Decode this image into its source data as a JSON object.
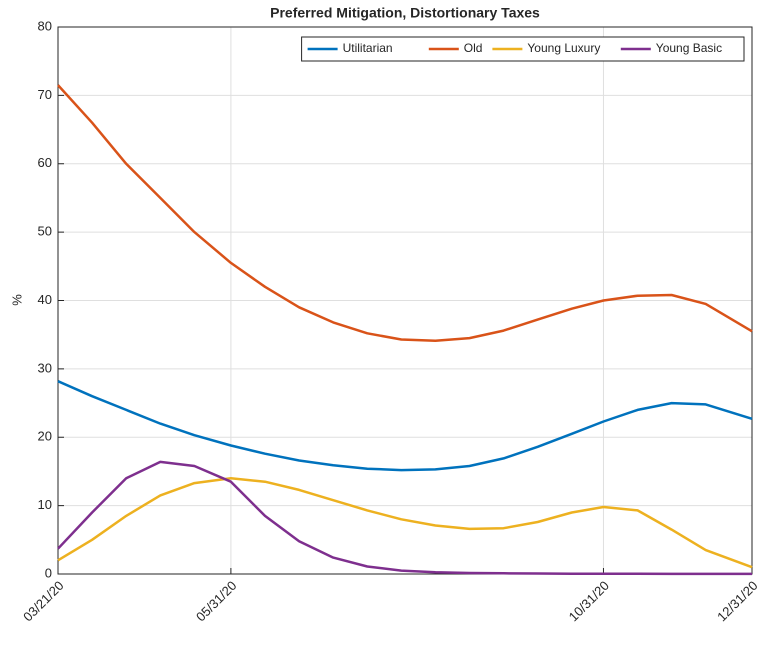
{
  "chart_data": {
    "type": "line",
    "title": "Preferred Mitigation, Distortionary Taxes",
    "y_label": "%",
    "x": [
      "2020-03-21",
      "2020-04-04",
      "2020-04-18",
      "2020-05-02",
      "2020-05-16",
      "2020-05-31",
      "2020-06-14",
      "2020-06-28",
      "2020-07-12",
      "2020-07-26",
      "2020-08-09",
      "2020-08-23",
      "2020-09-06",
      "2020-09-20",
      "2020-10-04",
      "2020-10-18",
      "2020-10-31",
      "2020-11-14",
      "2020-11-28",
      "2020-12-12",
      "2020-12-31"
    ],
    "series": [
      {
        "name": "Utilitarian",
        "color": "#0072BD",
        "values": [
          28.2,
          26,
          24,
          22,
          20.3,
          18.8,
          17.6,
          16.6,
          15.9,
          15.4,
          15.2,
          15.3,
          15.8,
          16.9,
          18.6,
          20.5,
          22.3,
          24,
          25,
          24.8,
          22.7
        ]
      },
      {
        "name": "Old",
        "color": "#D95319",
        "values": [
          71.5,
          66,
          60,
          55,
          50,
          45.5,
          42,
          39,
          36.8,
          35.2,
          34.3,
          34.1,
          34.5,
          35.6,
          37.2,
          38.8,
          40,
          40.7,
          40.8,
          39.5,
          35.5
        ]
      },
      {
        "name": "Young Luxury",
        "color": "#EDB120",
        "values": [
          2,
          5,
          8.5,
          11.5,
          13.3,
          14,
          13.5,
          12.3,
          10.8,
          9.3,
          8,
          7.1,
          6.6,
          6.7,
          7.6,
          9,
          9.8,
          9.3,
          6.5,
          3.5,
          1
        ]
      },
      {
        "name": "Young Basic",
        "color": "#7E2F8E",
        "values": [
          3.7,
          9,
          14,
          16.4,
          15.8,
          13.5,
          8.5,
          4.8,
          2.4,
          1.1,
          0.5,
          0.25,
          0.15,
          0.1,
          0.08,
          0.05,
          0.04,
          0.03,
          0.02,
          0.02,
          0.02
        ]
      }
    ],
    "xlim": [
      "2020-03-21",
      "2020-12-31"
    ],
    "xticks": [
      {
        "value": "2020-03-21",
        "label": "03/21/20"
      },
      {
        "value": "2020-05-31",
        "label": "05/31/20"
      },
      {
        "value": "2020-10-31",
        "label": "10/31/20"
      },
      {
        "value": "2020-12-31",
        "label": "12/31/20"
      }
    ],
    "ylim": [
      0,
      80
    ],
    "yticks": [
      0,
      10,
      20,
      30,
      40,
      50,
      60,
      70,
      80
    ],
    "grid": true,
    "legend_position": "top-right"
  }
}
